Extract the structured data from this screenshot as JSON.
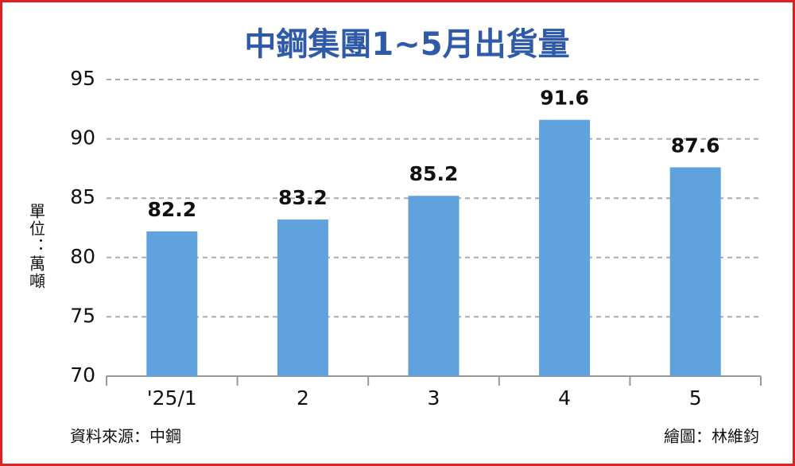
{
  "chart_data": {
    "type": "bar",
    "title": "中鋼集團1~5月出貨量",
    "y_label": "單位：萬噸",
    "categories": [
      "'25/1",
      "2",
      "3",
      "4",
      "5"
    ],
    "values": [
      82.2,
      83.2,
      85.2,
      91.6,
      87.6
    ],
    "color": "#5fa2de",
    "ylim": [
      70,
      95
    ],
    "yticks": [
      70,
      75,
      80,
      85,
      90,
      95
    ],
    "grid": true,
    "source": "資料來源：中鋼",
    "credit": "繪圖：林維鈞"
  }
}
